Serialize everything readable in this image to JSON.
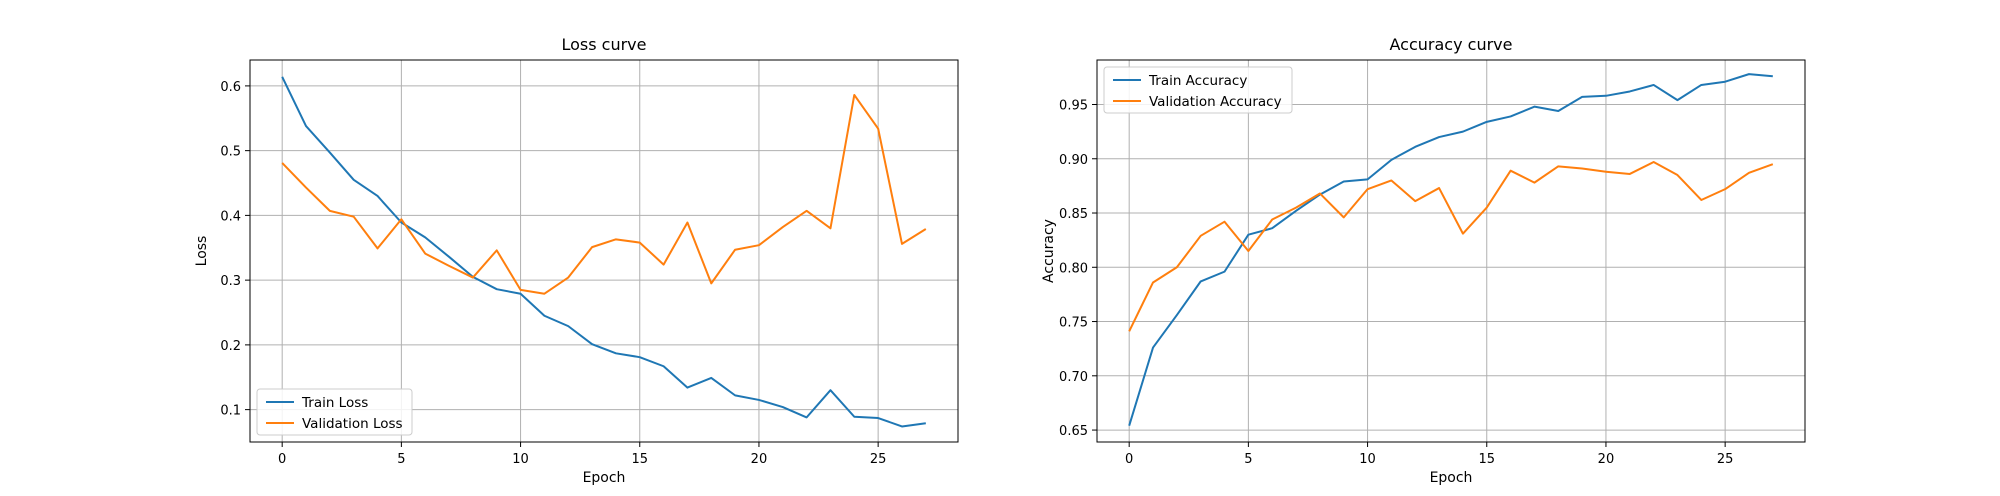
{
  "chart_data": [
    {
      "type": "line",
      "title": "Loss curve",
      "xlabel": "Epoch",
      "ylabel": "Loss",
      "xlim": [
        -1.35,
        28.35
      ],
      "ylim": [
        0.05,
        0.64
      ],
      "xticks": [
        0,
        5,
        10,
        15,
        20,
        25
      ],
      "yticks": [
        0.1,
        0.2,
        0.3,
        0.4,
        0.5,
        0.6
      ],
      "ytick_labels": [
        "0.1",
        "0.2",
        "0.3",
        "0.4",
        "0.5",
        "0.6"
      ],
      "grid": true,
      "legend_position": "lower-left",
      "x": [
        0,
        1,
        2,
        3,
        4,
        5,
        6,
        7,
        8,
        9,
        10,
        11,
        12,
        13,
        14,
        15,
        16,
        17,
        18,
        19,
        20,
        21,
        22,
        23,
        24,
        25,
        26,
        27
      ],
      "series": [
        {
          "name": "Train Loss",
          "color": "#1f77b4",
          "values": [
            0.614,
            0.538,
            0.497,
            0.455,
            0.43,
            0.389,
            0.366,
            0.336,
            0.305,
            0.286,
            0.279,
            0.245,
            0.229,
            0.201,
            0.187,
            0.181,
            0.167,
            0.134,
            0.149,
            0.122,
            0.115,
            0.104,
            0.088,
            0.13,
            0.089,
            0.087,
            0.074,
            0.079
          ]
        },
        {
          "name": "Validation Loss",
          "color": "#ff7f0e",
          "values": [
            0.481,
            0.443,
            0.407,
            0.398,
            0.349,
            0.394,
            0.341,
            0.322,
            0.304,
            0.346,
            0.285,
            0.279,
            0.304,
            0.351,
            0.363,
            0.358,
            0.324,
            0.389,
            0.295,
            0.347,
            0.354,
            0.382,
            0.407,
            0.38,
            0.586,
            0.534,
            0.356,
            0.379
          ]
        }
      ]
    },
    {
      "type": "line",
      "title": "Accuracy curve",
      "xlabel": "Epoch",
      "ylabel": "Accuracy",
      "xlim": [
        -1.35,
        28.35
      ],
      "ylim": [
        0.639,
        0.991
      ],
      "xticks": [
        0,
        5,
        10,
        15,
        20,
        25
      ],
      "yticks": [
        0.65,
        0.7,
        0.75,
        0.8,
        0.85,
        0.9,
        0.95
      ],
      "ytick_labels": [
        "0.65",
        "0.70",
        "0.75",
        "0.80",
        "0.85",
        "0.90",
        "0.95"
      ],
      "grid": true,
      "legend_position": "upper-left",
      "x": [
        0,
        1,
        2,
        3,
        4,
        5,
        6,
        7,
        8,
        9,
        10,
        11,
        12,
        13,
        14,
        15,
        16,
        17,
        18,
        19,
        20,
        21,
        22,
        23,
        24,
        25,
        26,
        27
      ],
      "series": [
        {
          "name": "Train Accuracy",
          "color": "#1f77b4",
          "values": [
            0.654,
            0.726,
            0.756,
            0.787,
            0.796,
            0.83,
            0.836,
            0.852,
            0.867,
            0.879,
            0.881,
            0.899,
            0.911,
            0.92,
            0.925,
            0.934,
            0.939,
            0.948,
            0.944,
            0.957,
            0.958,
            0.962,
            0.968,
            0.954,
            0.968,
            0.971,
            0.978,
            0.976
          ]
        },
        {
          "name": "Validation Accuracy",
          "color": "#ff7f0e",
          "values": [
            0.741,
            0.786,
            0.8,
            0.829,
            0.842,
            0.815,
            0.844,
            0.855,
            0.868,
            0.846,
            0.872,
            0.88,
            0.861,
            0.873,
            0.831,
            0.855,
            0.889,
            0.878,
            0.893,
            0.891,
            0.888,
            0.886,
            0.897,
            0.885,
            0.862,
            0.872,
            0.887,
            0.895
          ]
        }
      ]
    }
  ]
}
